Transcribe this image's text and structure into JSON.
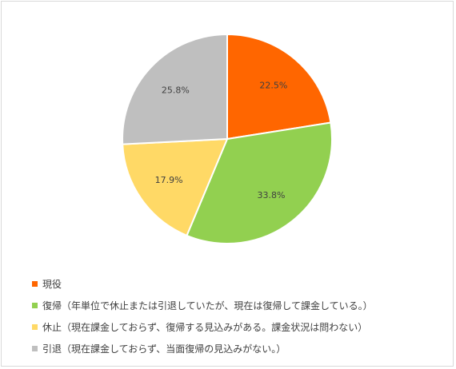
{
  "chart_data": {
    "type": "pie",
    "categories": [
      "現役",
      "復帰（年単位で休止または引退していたが、現在は復帰して課金している。）",
      "休止（現在課金しておらず、復帰する見込みがある。課金状況は問わない）",
      "引退（現在課金しておらず、当面復帰の見込みがない。）"
    ],
    "values": [
      22.5,
      33.8,
      17.9,
      25.8
    ],
    "data_labels": [
      "22.5%",
      "33.8%",
      "17.9%",
      "25.8%"
    ],
    "colors": [
      "#ff6600",
      "#92d050",
      "#ffd966",
      "#bfbfbf"
    ],
    "legend_position": "bottom-left",
    "start_angle_deg": 0,
    "direction": "clockwise"
  }
}
